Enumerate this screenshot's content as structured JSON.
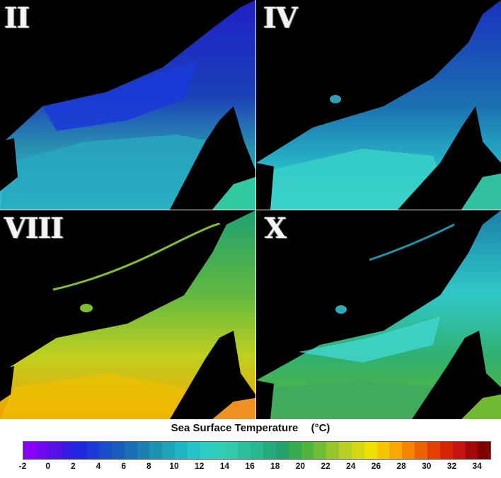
{
  "panels": [
    {
      "label": "II"
    },
    {
      "label": "IV"
    },
    {
      "label": "VIII"
    },
    {
      "label": "X"
    }
  ],
  "legend": {
    "title": "Sea Surface Temperature",
    "unit": "(°C)",
    "min": -2,
    "max": 35,
    "ticks": [
      "-2",
      "0",
      "2",
      "4",
      "6",
      "8",
      "10",
      "12",
      "14",
      "16",
      "18",
      "20",
      "22",
      "24",
      "26",
      "28",
      "30",
      "32",
      "34"
    ],
    "colors": [
      "#8a00ff",
      "#5a10e6",
      "#2020e0",
      "#1a40d0",
      "#1a60b8",
      "#1a80b0",
      "#1aa0b8",
      "#20c0c8",
      "#30d0c0",
      "#30c8a8",
      "#28b890",
      "#20a070",
      "#40b040",
      "#80c030",
      "#c0d020",
      "#f0e000",
      "#f8b000",
      "#f07000",
      "#e03000",
      "#c01010",
      "#800000"
    ]
  }
}
